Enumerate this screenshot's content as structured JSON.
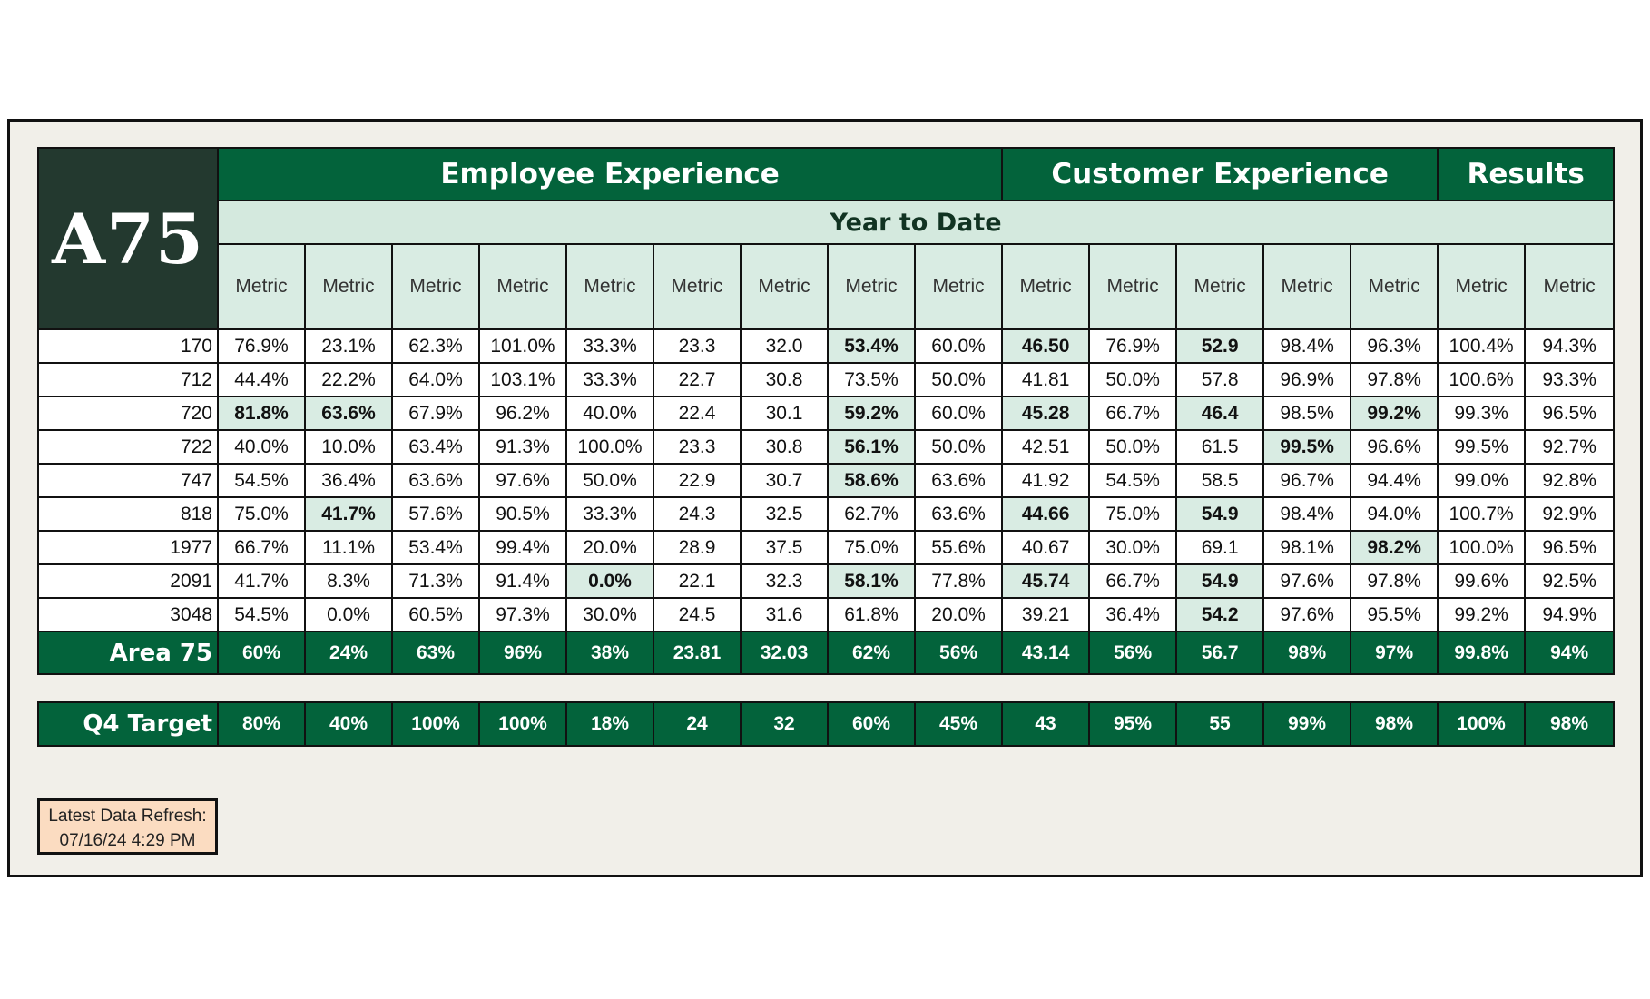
{
  "logo_text": "A75",
  "groups": [
    {
      "label": "Employee Experience"
    },
    {
      "label": "Customer Experience"
    },
    {
      "label": "Results"
    }
  ],
  "period_label": "Year to Date",
  "metric_headers": [
    "Metric",
    "Metric",
    "Metric",
    "Metric",
    "Metric",
    "Metric",
    "Metric",
    "Metric",
    "Metric",
    "Metric",
    "Metric",
    "Metric",
    "Metric",
    "Metric",
    "Metric",
    "Metric"
  ],
  "rows": [
    {
      "label": "170",
      "values": [
        "76.9%",
        "23.1%",
        "62.3%",
        "101.0%",
        "33.3%",
        "23.3",
        "32.0",
        "53.4%",
        "60.0%",
        "46.50",
        "76.9%",
        "52.9",
        "98.4%",
        "96.3%",
        "100.4%",
        "94.3%"
      ],
      "highlight": [
        7,
        9,
        11
      ]
    },
    {
      "label": "712",
      "values": [
        "44.4%",
        "22.2%",
        "64.0%",
        "103.1%",
        "33.3%",
        "22.7",
        "30.8",
        "73.5%",
        "50.0%",
        "41.81",
        "50.0%",
        "57.8",
        "96.9%",
        "97.8%",
        "100.6%",
        "93.3%"
      ],
      "highlight": []
    },
    {
      "label": "720",
      "values": [
        "81.8%",
        "63.6%",
        "67.9%",
        "96.2%",
        "40.0%",
        "22.4",
        "30.1",
        "59.2%",
        "60.0%",
        "45.28",
        "66.7%",
        "46.4",
        "98.5%",
        "99.2%",
        "99.3%",
        "96.5%"
      ],
      "highlight": [
        0,
        1,
        7,
        9,
        11,
        13
      ]
    },
    {
      "label": "722",
      "values": [
        "40.0%",
        "10.0%",
        "63.4%",
        "91.3%",
        "100.0%",
        "23.3",
        "30.8",
        "56.1%",
        "50.0%",
        "42.51",
        "50.0%",
        "61.5",
        "99.5%",
        "96.6%",
        "99.5%",
        "92.7%"
      ],
      "highlight": [
        7,
        12
      ]
    },
    {
      "label": "747",
      "values": [
        "54.5%",
        "36.4%",
        "63.6%",
        "97.6%",
        "50.0%",
        "22.9",
        "30.7",
        "58.6%",
        "63.6%",
        "41.92",
        "54.5%",
        "58.5",
        "96.7%",
        "94.4%",
        "99.0%",
        "92.8%"
      ],
      "highlight": [
        7
      ]
    },
    {
      "label": "818",
      "values": [
        "75.0%",
        "41.7%",
        "57.6%",
        "90.5%",
        "33.3%",
        "24.3",
        "32.5",
        "62.7%",
        "63.6%",
        "44.66",
        "75.0%",
        "54.9",
        "98.4%",
        "94.0%",
        "100.7%",
        "92.9%"
      ],
      "highlight": [
        1,
        9,
        11
      ]
    },
    {
      "label": "1977",
      "values": [
        "66.7%",
        "11.1%",
        "53.4%",
        "99.4%",
        "20.0%",
        "28.9",
        "37.5",
        "75.0%",
        "55.6%",
        "40.67",
        "30.0%",
        "69.1",
        "98.1%",
        "98.2%",
        "100.0%",
        "96.5%"
      ],
      "highlight": [
        13
      ]
    },
    {
      "label": "2091",
      "values": [
        "41.7%",
        "8.3%",
        "71.3%",
        "91.4%",
        "0.0%",
        "22.1",
        "32.3",
        "58.1%",
        "77.8%",
        "45.74",
        "66.7%",
        "54.9",
        "97.6%",
        "97.8%",
        "99.6%",
        "92.5%"
      ],
      "highlight": [
        4,
        7,
        9,
        11
      ]
    },
    {
      "label": "3048",
      "values": [
        "54.5%",
        "0.0%",
        "60.5%",
        "97.3%",
        "30.0%",
        "24.5",
        "31.6",
        "61.8%",
        "20.0%",
        "39.21",
        "36.4%",
        "54.2",
        "97.6%",
        "95.5%",
        "99.2%",
        "94.9%"
      ],
      "highlight": [
        11
      ]
    }
  ],
  "summary": {
    "label": "Area 75",
    "values": [
      "60%",
      "24%",
      "63%",
      "96%",
      "38%",
      "23.81",
      "32.03",
      "62%",
      "56%",
      "43.14",
      "56%",
      "56.7",
      "98%",
      "97%",
      "99.8%",
      "94%"
    ]
  },
  "target": {
    "label": "Q4 Target",
    "values": [
      "80%",
      "40%",
      "100%",
      "100%",
      "18%",
      "24",
      "32",
      "60%",
      "45%",
      "43",
      "95%",
      "55",
      "99%",
      "98%",
      "100%",
      "98%"
    ]
  },
  "refresh": {
    "line1": "Latest Data Refresh:",
    "line2": "07/16/24 4:29 PM"
  },
  "colors": {
    "dark_green": "#03633b",
    "light_green": "#d9ece3",
    "logo_bg": "#23392f",
    "panel_bg": "#f1efe9",
    "refresh_bg": "#fbdcc1"
  }
}
